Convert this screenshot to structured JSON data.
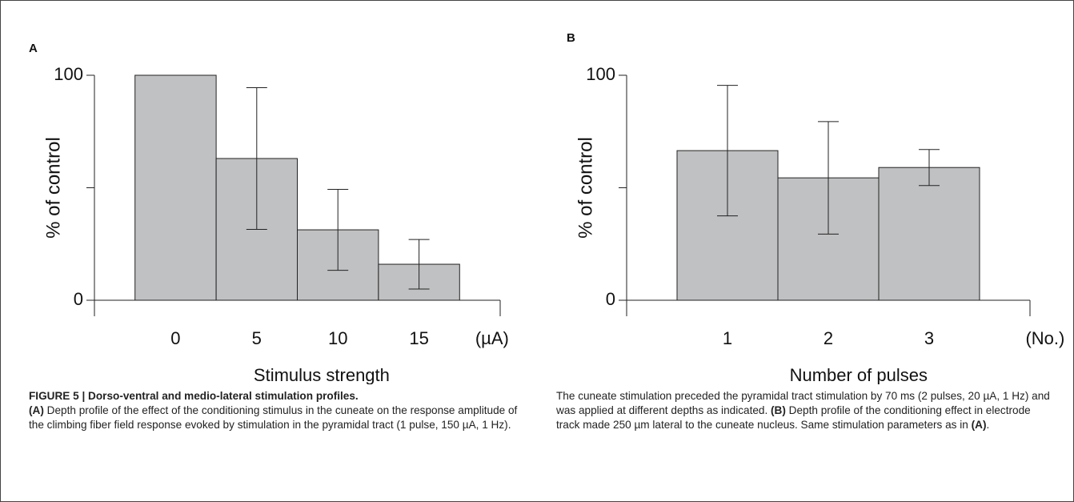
{
  "chart_data": [
    {
      "type": "bar",
      "panel": "A",
      "ylabel": "% of control",
      "xlabel": "Stimulus strength",
      "x_unit": "(µA)",
      "categories": [
        "0",
        "5",
        "10",
        "15"
      ],
      "values": [
        100,
        63,
        31.3,
        16
      ],
      "errors": [
        null,
        31.5,
        18,
        11
      ],
      "color": "#c0c1c3",
      "ylim": [
        0,
        100
      ],
      "yticks": [
        0,
        {
          "value": 50,
          "label": null
        },
        100
      ]
    },
    {
      "type": "bar",
      "panel": "B",
      "ylabel": "% of control",
      "xlabel": "Number of pulses",
      "x_unit": "(No.)",
      "categories": [
        "1",
        "2",
        "3"
      ],
      "values": [
        66.5,
        54.4,
        59
      ],
      "errors": [
        29,
        25,
        8
      ],
      "color": "#c0c1c3",
      "ylim": [
        0,
        100
      ],
      "yticks": [
        0,
        {
          "value": 50,
          "label": null
        },
        100
      ]
    }
  ],
  "caption": {
    "title": "FIGURE 5 | Dorso-ventral and medio-lateral stimulation profiles.",
    "parts": [
      {
        "text": "(A)",
        "bold": true
      },
      {
        "text": " Depth profile of the effect of the conditioning stimulus in the cuneate on the response amplitude of the climbing fiber field response evoked by stimulation in the pyramidal tract (1 pulse, 150 µA, 1 Hz). The cuneate stimulation preceded the pyramidal tract stimulation by 70 ms (2 pulses, 20 µA, 1 Hz) and was applied at different depths as indicated. ",
        "bold": false
      },
      {
        "text": "(B)",
        "bold": true
      },
      {
        "text": " Depth profile of the conditioning effect in electrode track made 250 µm lateral to the cuneate nucleus. Same stimulation parameters as in ",
        "bold": false
      },
      {
        "text": "(A)",
        "bold": true
      },
      {
        "text": ".",
        "bold": false
      }
    ]
  }
}
